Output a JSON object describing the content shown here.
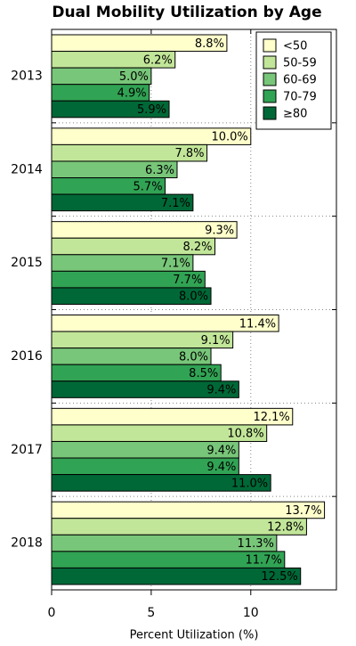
{
  "chart_data": {
    "type": "bar",
    "orientation": "horizontal",
    "title": "Dual Mobility Utilization by Age",
    "x_label": "Percent Utilization (%)",
    "categories": [
      "2013",
      "2014",
      "2015",
      "2016",
      "2017",
      "2018"
    ],
    "series": [
      {
        "name": "<50",
        "color": "#ffffcc",
        "values": [
          8.8,
          10.0,
          9.3,
          11.4,
          12.1,
          13.7
        ],
        "value_labels": [
          "8.8%",
          "10.0%",
          "9.3%",
          "11.4%",
          "12.1%",
          "13.7%"
        ]
      },
      {
        "name": "50-59",
        "color": "#c2e699",
        "values": [
          6.2,
          7.8,
          8.2,
          9.1,
          10.8,
          12.8
        ],
        "value_labels": [
          "6.2%",
          "7.8%",
          "8.2%",
          "9.1%",
          "10.8%",
          "12.8%"
        ]
      },
      {
        "name": "60-69",
        "color": "#78c679",
        "values": [
          5.0,
          6.3,
          7.1,
          8.0,
          9.4,
          11.3
        ],
        "value_labels": [
          "5.0%",
          "6.3%",
          "7.1%",
          "8.0%",
          "9.4%",
          "11.3%"
        ]
      },
      {
        "name": "70-79",
        "color": "#31a354",
        "values": [
          4.9,
          5.7,
          7.7,
          8.5,
          9.4,
          11.7
        ],
        "value_labels": [
          "4.9%",
          "5.7%",
          "7.7%",
          "8.5%",
          "9.4%",
          "11.7%"
        ]
      },
      {
        "name": "≥80",
        "color": "#006837",
        "values": [
          5.9,
          7.1,
          8.0,
          9.4,
          11.0,
          12.5
        ],
        "value_labels": [
          "5.9%",
          "7.1%",
          "8.0%",
          "9.4%",
          "11.0%",
          "12.5%"
        ]
      }
    ],
    "xlim": [
      0,
      14.3
    ],
    "xticks": [
      0,
      5,
      10
    ],
    "grid": true,
    "legend": "top-right"
  }
}
